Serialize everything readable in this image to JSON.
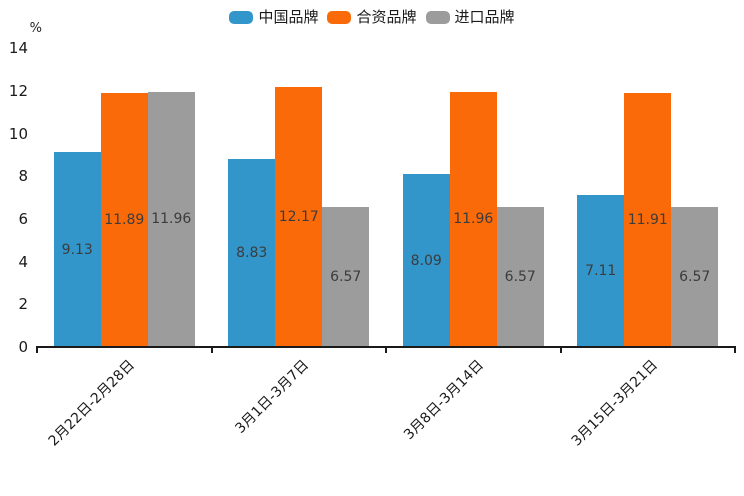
{
  "chart_data": {
    "type": "bar",
    "title": "",
    "unit_label": "%",
    "categories": [
      "2月22日-2月28日",
      "3月1日-3月7日",
      "3月8日-3月14日",
      "3月15日-3月21日"
    ],
    "series": [
      {
        "name": "中国品牌",
        "color": "#3296CA",
        "values": [
          9.13,
          8.83,
          8.09,
          7.11
        ]
      },
      {
        "name": "合资品牌",
        "color": "#FB6A08",
        "values": [
          11.89,
          12.17,
          11.96,
          11.91
        ]
      },
      {
        "name": "进口品牌",
        "color": "#9C9C9C",
        "values": [
          11.96,
          6.57,
          6.57,
          6.57
        ]
      }
    ],
    "value_labels": {
      "中国品牌": [
        "9.13",
        "8.83",
        "8.09",
        "7.11"
      ],
      "合资品牌": [
        "11.89",
        "12.17",
        "11.96",
        "11.91"
      ],
      "进口品牌": [
        "11.96",
        "6.57",
        "6.57",
        "6.57"
      ]
    },
    "ylim": [
      0,
      14
    ],
    "yticks": [
      0,
      2,
      4,
      6,
      8,
      10,
      12,
      14
    ],
    "grid": false,
    "legend_position": "top",
    "colors": {
      "axis": "#1a1a1a",
      "tick_label": "#1a1a1a",
      "value_label": "#3c3c3c",
      "background": "#ffffff"
    }
  }
}
